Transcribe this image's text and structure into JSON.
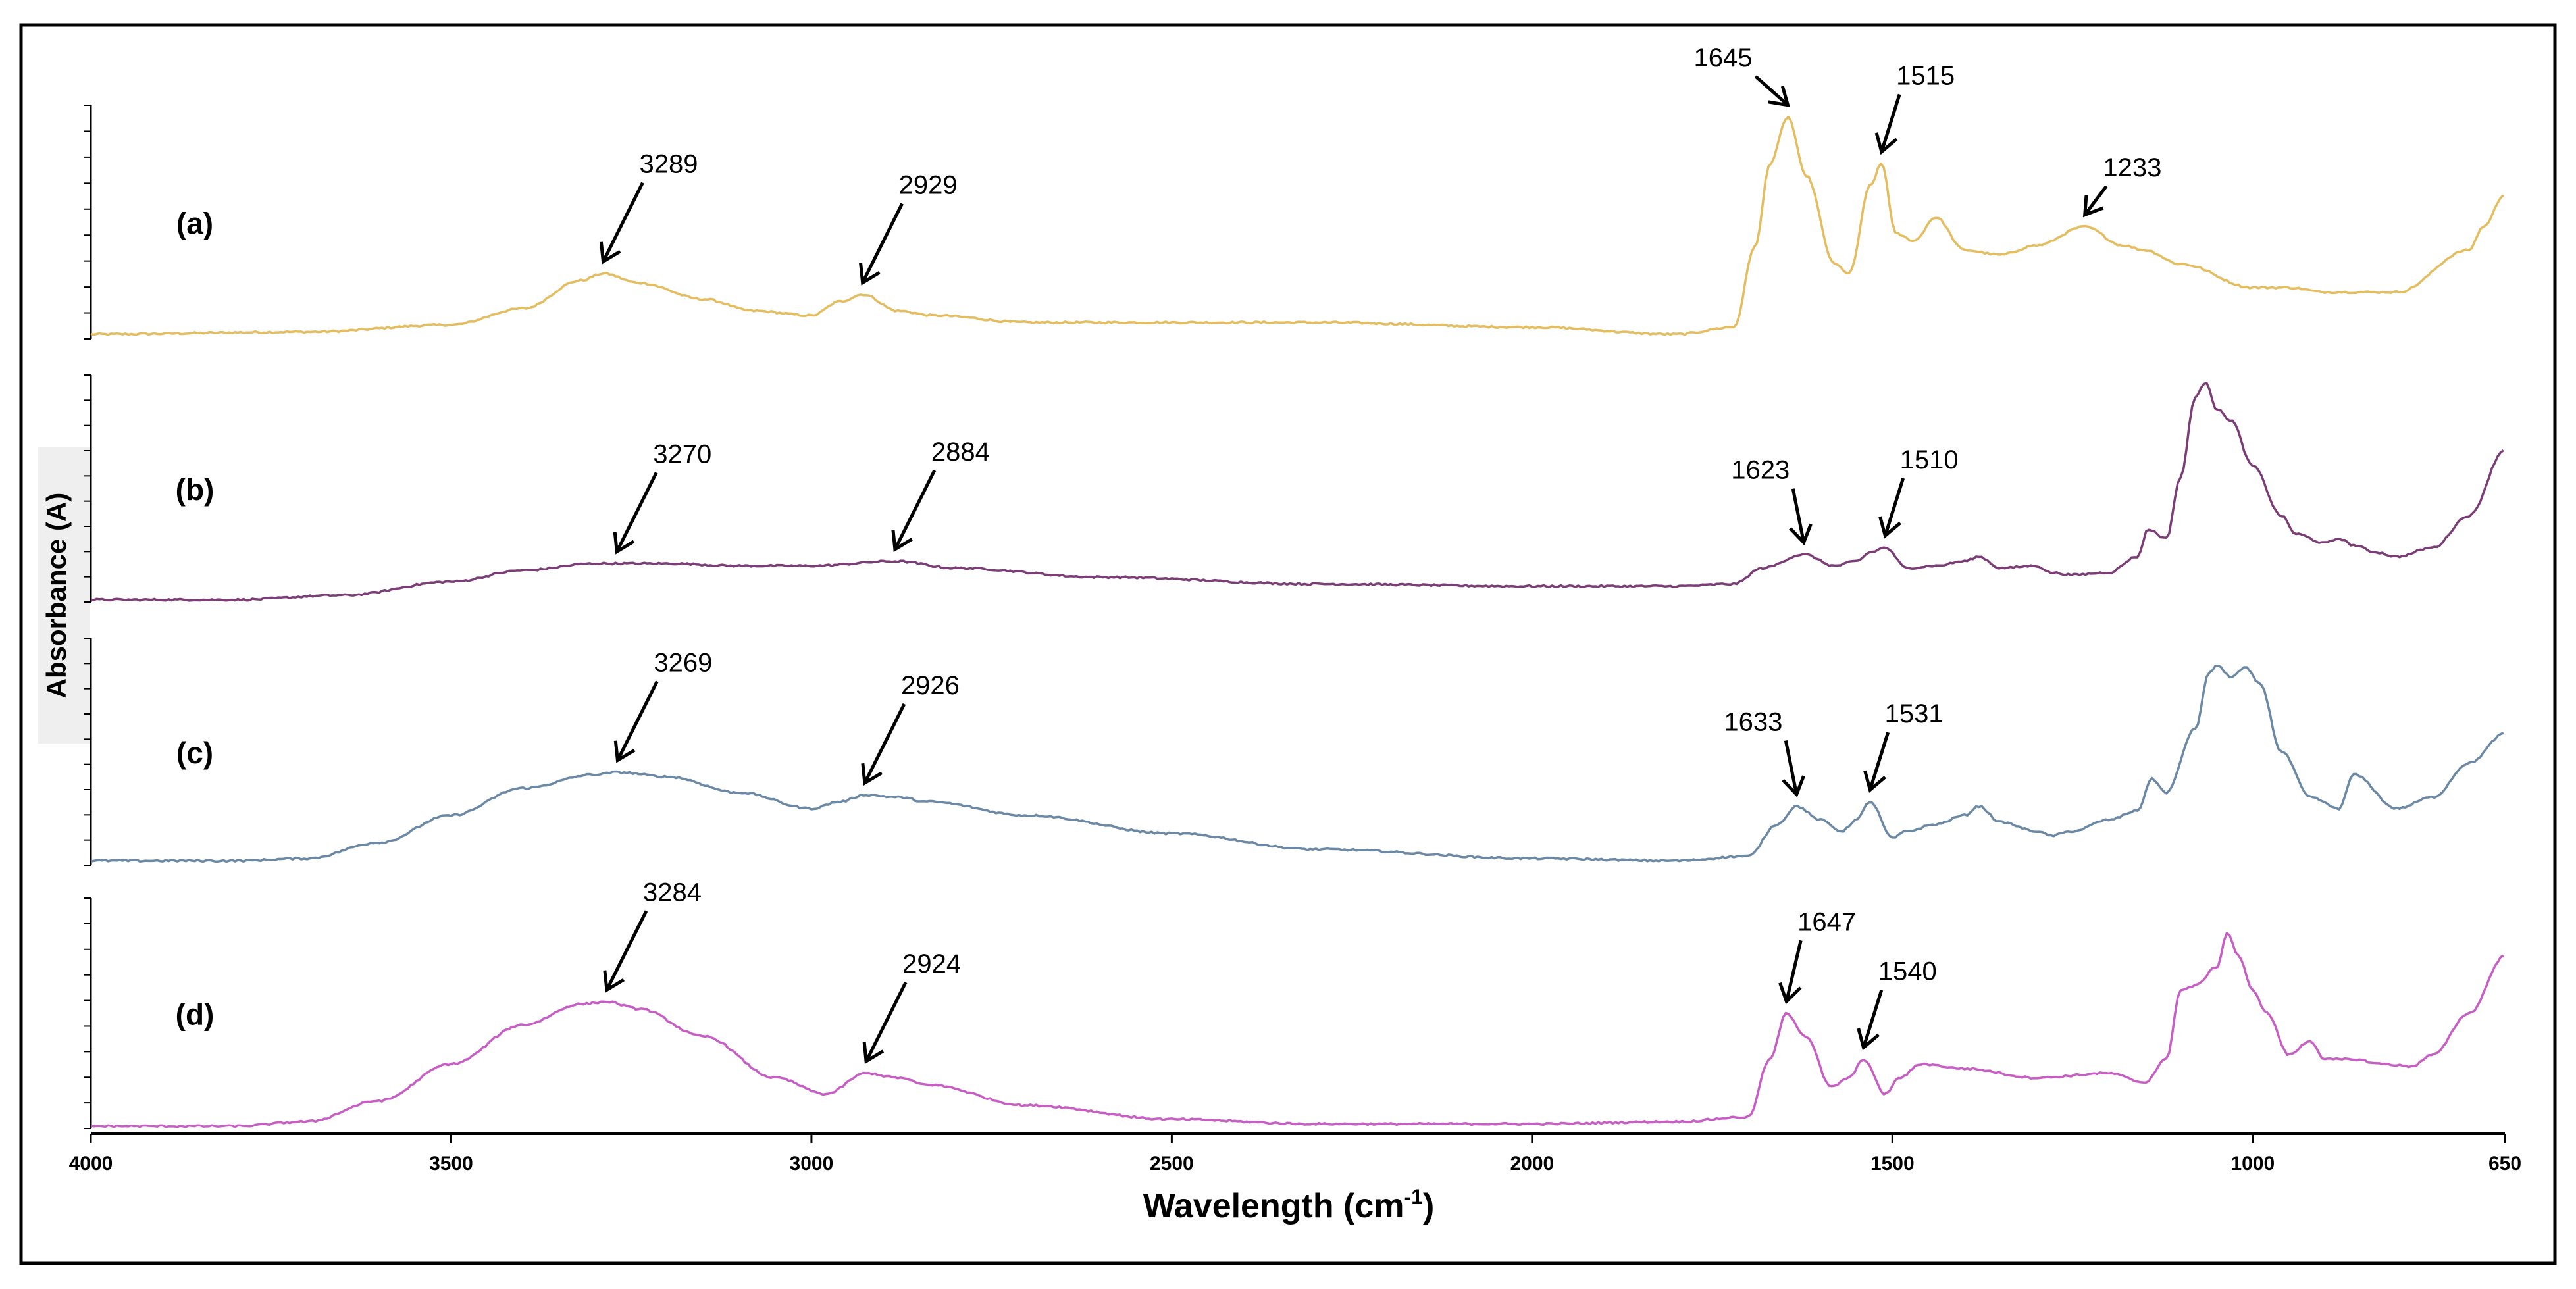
{
  "chart_data": {
    "type": "line",
    "title": "",
    "xlabel": "Wavelength (cm",
    "xlabel_sup": "-1",
    "xlabel_close": ")",
    "ylabel": "Absorbance (A)",
    "xlim": [
      4000,
      650
    ],
    "x_ticks": [
      "4000",
      "3500",
      "3000",
      "2500",
      "2000",
      "1500",
      "1000",
      "650"
    ],
    "x_tick_values": [
      4000,
      3500,
      3000,
      2500,
      2000,
      1500,
      1000,
      650
    ],
    "series": [
      {
        "name": "(a)",
        "color": "#e3bd5f",
        "ylim": [
          0,
          1
        ],
        "x": [
          4000,
          3700,
          3500,
          3400,
          3320,
          3289,
          3240,
          3150,
          3080,
          3000,
          2960,
          2929,
          2880,
          2830,
          2700,
          2300,
          2000,
          1800,
          1720,
          1690,
          1670,
          1645,
          1620,
          1580,
          1560,
          1530,
          1515,
          1495,
          1470,
          1440,
          1400,
          1350,
          1300,
          1233,
          1180,
          1150,
          1100,
          1000,
          950,
          900,
          800,
          700,
          680,
          650
        ],
        "y": [
          0.02,
          0.03,
          0.06,
          0.13,
          0.25,
          0.28,
          0.24,
          0.17,
          0.12,
          0.1,
          0.16,
          0.19,
          0.12,
          0.1,
          0.07,
          0.07,
          0.05,
          0.02,
          0.05,
          0.4,
          0.75,
          0.95,
          0.7,
          0.32,
          0.28,
          0.66,
          0.75,
          0.45,
          0.42,
          0.52,
          0.38,
          0.36,
          0.4,
          0.48,
          0.4,
          0.38,
          0.32,
          0.22,
          0.22,
          0.2,
          0.2,
          0.38,
          0.48,
          0.62
        ]
      },
      {
        "name": "(b)",
        "color": "#7b3d76",
        "ylim": [
          0,
          1
        ],
        "x": [
          4000,
          3800,
          3650,
          3500,
          3400,
          3300,
          3270,
          3200,
          3100,
          3000,
          2884,
          2800,
          2600,
          2300,
          2000,
          1800,
          1720,
          1680,
          1623,
          1580,
          1550,
          1530,
          1510,
          1480,
          1440,
          1400,
          1380,
          1350,
          1300,
          1280,
          1250,
          1200,
          1160,
          1145,
          1120,
          1100,
          1080,
          1065,
          1050,
          1030,
          1000,
          960,
          940,
          900,
          880,
          860,
          830,
          800,
          750,
          700,
          650
        ],
        "y": [
          0.01,
          0.01,
          0.03,
          0.09,
          0.14,
          0.17,
          0.17,
          0.17,
          0.16,
          0.16,
          0.18,
          0.15,
          0.11,
          0.08,
          0.07,
          0.07,
          0.08,
          0.15,
          0.21,
          0.16,
          0.18,
          0.22,
          0.24,
          0.15,
          0.16,
          0.18,
          0.2,
          0.15,
          0.16,
          0.13,
          0.12,
          0.13,
          0.2,
          0.32,
          0.28,
          0.55,
          0.9,
          0.97,
          0.85,
          0.8,
          0.6,
          0.38,
          0.3,
          0.26,
          0.28,
          0.25,
          0.22,
          0.2,
          0.24,
          0.38,
          0.67
        ]
      },
      {
        "name": "(c)",
        "color": "#6b88a4",
        "ylim": [
          0,
          1
        ],
        "x": [
          4000,
          3800,
          3700,
          3600,
          3500,
          3400,
          3300,
          3269,
          3200,
          3100,
          3000,
          2960,
          2926,
          2880,
          2840,
          2700,
          2500,
          2300,
          2000,
          1800,
          1700,
          1660,
          1633,
          1600,
          1570,
          1550,
          1531,
          1500,
          1480,
          1440,
          1400,
          1380,
          1350,
          1300,
          1280,
          1250,
          1200,
          1160,
          1140,
          1120,
          1080,
          1060,
          1050,
          1030,
          1010,
          990,
          960,
          920,
          880,
          860,
          800,
          750,
          700,
          650
        ],
        "y": [
          0.02,
          0.02,
          0.03,
          0.1,
          0.22,
          0.34,
          0.4,
          0.41,
          0.39,
          0.32,
          0.25,
          0.28,
          0.31,
          0.3,
          0.28,
          0.22,
          0.14,
          0.07,
          0.03,
          0.02,
          0.04,
          0.18,
          0.26,
          0.2,
          0.15,
          0.2,
          0.28,
          0.12,
          0.15,
          0.18,
          0.22,
          0.26,
          0.19,
          0.15,
          0.13,
          0.15,
          0.2,
          0.24,
          0.38,
          0.32,
          0.6,
          0.85,
          0.88,
          0.83,
          0.87,
          0.8,
          0.5,
          0.3,
          0.25,
          0.4,
          0.25,
          0.3,
          0.45,
          0.58
        ]
      },
      {
        "name": "(d)",
        "color": "#c75ec3",
        "ylim": [
          0,
          1
        ],
        "x": [
          4000,
          3800,
          3700,
          3600,
          3500,
          3400,
          3320,
          3284,
          3240,
          3150,
          3050,
          2980,
          2924,
          2880,
          2840,
          2700,
          2500,
          2300,
          2000,
          1800,
          1700,
          1670,
          1647,
          1620,
          1585,
          1560,
          1540,
          1510,
          1490,
          1460,
          1400,
          1300,
          1200,
          1150,
          1120,
          1100,
          1080,
          1050,
          1035,
          1020,
          1000,
          980,
          950,
          920,
          900,
          860,
          820,
          780,
          750,
          700,
          650
        ],
        "y": [
          0.01,
          0.01,
          0.03,
          0.12,
          0.28,
          0.45,
          0.54,
          0.55,
          0.52,
          0.4,
          0.22,
          0.15,
          0.24,
          0.22,
          0.19,
          0.1,
          0.04,
          0.02,
          0.02,
          0.03,
          0.05,
          0.3,
          0.5,
          0.4,
          0.18,
          0.22,
          0.3,
          0.15,
          0.22,
          0.28,
          0.26,
          0.22,
          0.24,
          0.2,
          0.3,
          0.6,
          0.62,
          0.7,
          0.85,
          0.75,
          0.6,
          0.5,
          0.32,
          0.38,
          0.3,
          0.3,
          0.28,
          0.27,
          0.32,
          0.5,
          0.75
        ]
      }
    ],
    "annotations": [
      {
        "series": "(a)",
        "x": 3289,
        "text": "3289"
      },
      {
        "series": "(a)",
        "x": 2929,
        "text": "2929"
      },
      {
        "series": "(a)",
        "x": 1645,
        "text": "1645"
      },
      {
        "series": "(a)",
        "x": 1515,
        "text": "1515"
      },
      {
        "series": "(a)",
        "x": 1233,
        "text": "1233"
      },
      {
        "series": "(b)",
        "x": 3270,
        "text": "3270"
      },
      {
        "series": "(b)",
        "x": 2884,
        "text": "2884"
      },
      {
        "series": "(b)",
        "x": 1623,
        "text": "1623"
      },
      {
        "series": "(b)",
        "x": 1510,
        "text": "1510"
      },
      {
        "series": "(c)",
        "x": 3269,
        "text": "3269"
      },
      {
        "series": "(c)",
        "x": 2926,
        "text": "2926"
      },
      {
        "series": "(c)",
        "x": 1633,
        "text": "1633"
      },
      {
        "series": "(c)",
        "x": 1531,
        "text": "1531"
      },
      {
        "series": "(d)",
        "x": 3284,
        "text": "3284"
      },
      {
        "series": "(d)",
        "x": 2924,
        "text": "2924"
      },
      {
        "series": "(d)",
        "x": 1647,
        "text": "1647"
      },
      {
        "series": "(d)",
        "x": 1540,
        "text": "1540"
      }
    ]
  }
}
